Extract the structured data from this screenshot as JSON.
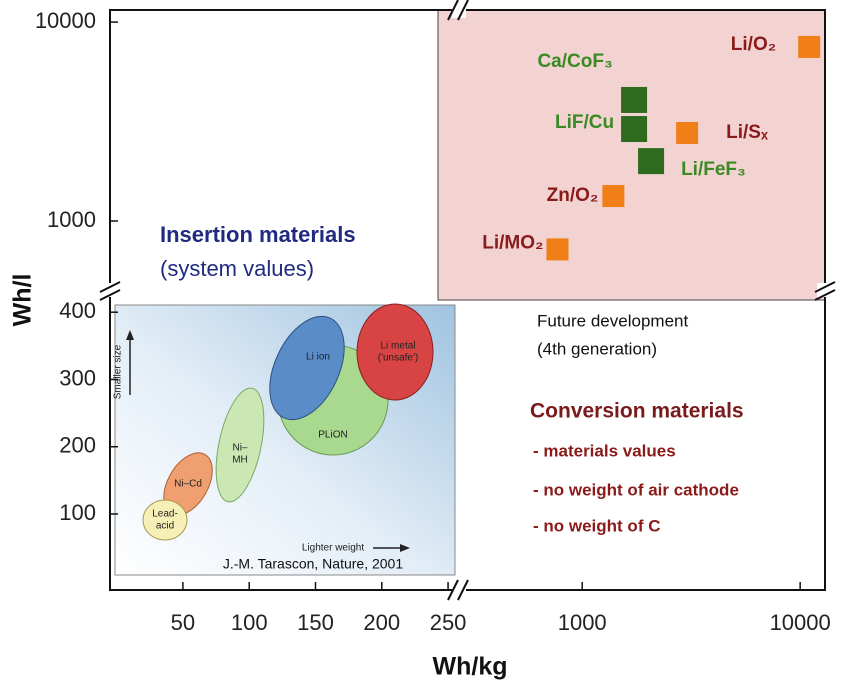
{
  "chart_data": {
    "type": "scatter",
    "x_label": "Wh/kg",
    "y_label": "Wh/l",
    "xlim": [
      -5,
      259
    ],
    "xticks": [
      50,
      100,
      150,
      200,
      250
    ],
    "xlim_log": [
      275,
      13000
    ],
    "xticks_log": [
      1000,
      10000
    ],
    "ylim": [
      -13,
      433
    ],
    "yticks": [
      100,
      200,
      300,
      400
    ],
    "ylim_log": [
      450,
      11500
    ],
    "yticks_log": [
      1000,
      10000
    ],
    "log_scale": true,
    "series": [
      {
        "color": "#2e6b1f",
        "label_color": "#3a8a24",
        "labels": [
          "Ca/CoF₃",
          "LiF/Cu",
          "Li/FeF₃"
        ],
        "x": [
          1730,
          1730,
          2070
        ],
        "y": [
          4060,
          2900,
          2000
        ]
      },
      {
        "color": "#f07f18",
        "label_color": "#8b1a1a",
        "labels": [
          "Li/O₂",
          "Li/Sₓ",
          "Zn/O₂",
          "Li/MO₂"
        ],
        "x": [
          11000,
          3030,
          1390,
          770
        ],
        "y": [
          7500,
          2770,
          1335,
          720
        ]
      }
    ],
    "annotations": {
      "insertion": [
        "Insertion materials",
        "(system values)"
      ],
      "future": [
        "Future development",
        "(4th generation)"
      ],
      "conversion": [
        "Conversion materials",
        "- materials values",
        "- no weight of air cathode",
        "- no weight of C"
      ]
    },
    "inset": {
      "y_arrow": "Smaller size",
      "x_arrow": "Lighter weight",
      "source": "J.-M. Tarascon, Nature, 2001",
      "lead_acid": [
        "Lead-",
        "acid"
      ],
      "ni_cd": "Ni–Cd",
      "ni_mh": [
        "Ni–",
        "MH"
      ],
      "li_ion": "Li ion",
      "plion": "PLiON",
      "li_metal": [
        "Li metal",
        "('unsafe')"
      ]
    }
  }
}
